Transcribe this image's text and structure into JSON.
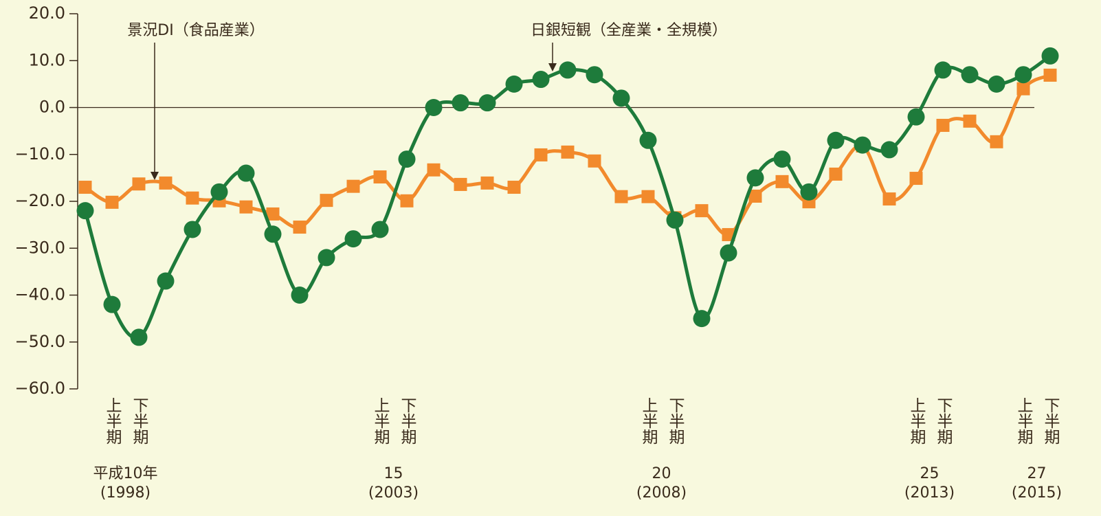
{
  "chart_data": {
    "type": "line",
    "annotations": [
      "景況DI（食品産業）",
      "日銀短観（全産業・全規模）"
    ],
    "categories": [
      null,
      "上半期",
      "下半期",
      null,
      null,
      null,
      null,
      null,
      null,
      null,
      null,
      "上半期",
      "下半期",
      null,
      null,
      null,
      null,
      null,
      null,
      null,
      null,
      "上半期",
      "下半期",
      null,
      null,
      null,
      null,
      null,
      null,
      null,
      null,
      "上半期",
      "下半期",
      null,
      null,
      "上半期",
      "下半期"
    ],
    "era_years": [
      null,
      "平成10年",
      null,
      null,
      null,
      null,
      null,
      null,
      null,
      null,
      null,
      "15",
      null,
      null,
      null,
      null,
      null,
      null,
      null,
      null,
      null,
      "20",
      null,
      null,
      null,
      null,
      null,
      null,
      null,
      null,
      null,
      "25",
      null,
      null,
      null,
      "27",
      null
    ],
    "western_years": [
      null,
      "(1998)",
      null,
      null,
      null,
      null,
      null,
      null,
      null,
      null,
      null,
      "(2003)",
      null,
      null,
      null,
      null,
      null,
      null,
      null,
      null,
      null,
      "(2008)",
      null,
      null,
      null,
      null,
      null,
      null,
      null,
      null,
      null,
      "(2013)",
      null,
      null,
      null,
      "(2015)",
      null
    ],
    "series": [
      {
        "name": "日銀短観（全産業・全規模）",
        "color": "#1e7b3b",
        "marker": "circle",
        "values": [
          -22,
          -42,
          -49,
          -37,
          -26,
          -18,
          -14,
          -27,
          -40,
          -32,
          -28,
          -26,
          -11,
          0,
          1,
          1,
          5,
          6,
          8,
          7,
          2,
          -7,
          -24,
          -45,
          -31,
          -15,
          -11,
          -18,
          -7,
          -8,
          -9,
          -2,
          8,
          7,
          5,
          7,
          11
        ]
      },
      {
        "name": "景況DI（食品産業）",
        "color": "#f28a2c",
        "marker": "square",
        "values": [
          -17.0,
          -20.2,
          -16.3,
          -16.1,
          -19.3,
          -19.9,
          -21.2,
          -22.7,
          -25.5,
          -19.8,
          -16.8,
          -14.8,
          -19.9,
          -13.3,
          -16.4,
          -16.1,
          -17.0,
          -10.1,
          -9.5,
          -11.4,
          -19.0,
          -19.0,
          -23.5,
          -22.0,
          -27.1,
          -18.9,
          -15.8,
          -20.1,
          -14.2,
          -8.2,
          -19.5,
          -15.1,
          -3.8,
          -2.9,
          -7.3,
          4.0,
          6.9
        ]
      }
    ],
    "ylim": [
      -60,
      20
    ],
    "yticks": [
      {
        "value": -60,
        "label": "−60.0"
      },
      {
        "value": -50,
        "label": "−50.0"
      },
      {
        "value": -40,
        "label": "−40.0"
      },
      {
        "value": -30,
        "label": "−30.0"
      },
      {
        "value": -20,
        "label": "−20.0"
      },
      {
        "value": -10,
        "label": "−10.0"
      },
      {
        "value": 0,
        "label": "0.0"
      },
      {
        "value": 10,
        "label": "10.0"
      },
      {
        "value": 20,
        "label": "20.0"
      }
    ]
  }
}
